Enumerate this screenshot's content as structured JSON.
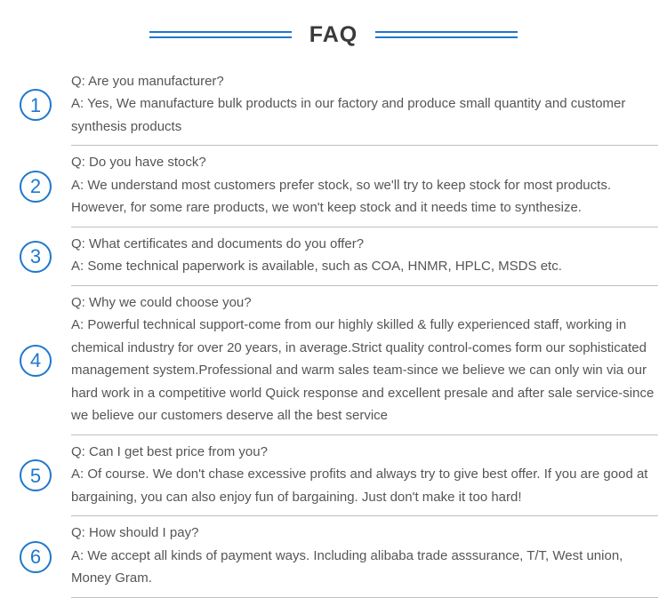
{
  "title": "FAQ",
  "colors": {
    "accent": "#1e78cd",
    "text": "#555555",
    "title_text": "#3a3a3a",
    "divider": "#bfbfbf",
    "background": "#ffffff"
  },
  "typography": {
    "title_fontsize": 25,
    "body_fontsize": 15,
    "number_fontsize": 22,
    "font_family": "Arial"
  },
  "items": [
    {
      "num": "1",
      "question": "Q: Are you manufacturer?",
      "answer": "A: Yes, We manufacture bulk products in our factory and produce small quantity and customer synthesis products"
    },
    {
      "num": "2",
      "question": "Q: Do you have stock?",
      "answer": "A: We understand most customers prefer stock, so we'll try to keep stock for most products. However, for some rare products, we won't keep stock and it needs time to synthesize."
    },
    {
      "num": "3",
      "question": "Q: What certificates and documents do you offer?",
      "answer": "A: Some technical paperwork is available, such as COA, HNMR, HPLC, MSDS etc."
    },
    {
      "num": "4",
      "question": "Q: Why we could choose you?",
      "answer": "A: Powerful technical support-come from our highly skilled & fully experienced staff, working in chemical industry for over 20 years, in average.Strict quality control-comes form our sophisticated management system.Professional and warm sales team-since we believe we can only win via our hard work in a competitive world\nQuick response and excellent presale and after sale service-since we believe our customers deserve all the best service"
    },
    {
      "num": "5",
      "question": "Q: Can I get best price from you?",
      "answer": "A: Of course. We don't chase excessive profits and always try to give best offer. If you are good at bargaining, you can also enjoy fun of bargaining. Just don't make it too hard!"
    },
    {
      "num": "6",
      "question": "Q: How should I pay?",
      "answer": "A: We accept all kinds of payment ways. Including alibaba trade asssurance, T/T, West union, Money Gram."
    }
  ]
}
